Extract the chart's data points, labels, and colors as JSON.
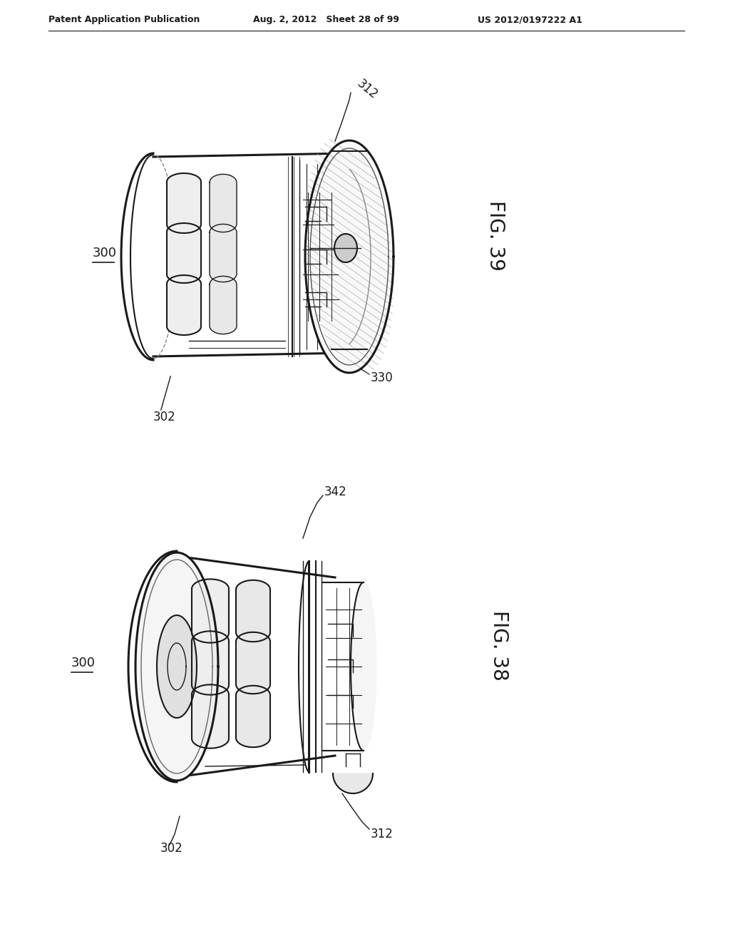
{
  "header_left": "Patent Application Publication",
  "header_center": "Aug. 2, 2012   Sheet 28 of 99",
  "header_right": "US 2012/0197222 A1",
  "fig39_label": "FIG. 39",
  "fig38_label": "FIG. 38",
  "ref_300_top": "300",
  "ref_302_top": "302",
  "ref_312_top": "312",
  "ref_330_top": "330",
  "ref_300_bot": "300",
  "ref_302_bot": "302",
  "ref_312_bot": "312",
  "ref_342_bot": "342",
  "bg_color": "#ffffff",
  "line_color": "#1a1a1a"
}
